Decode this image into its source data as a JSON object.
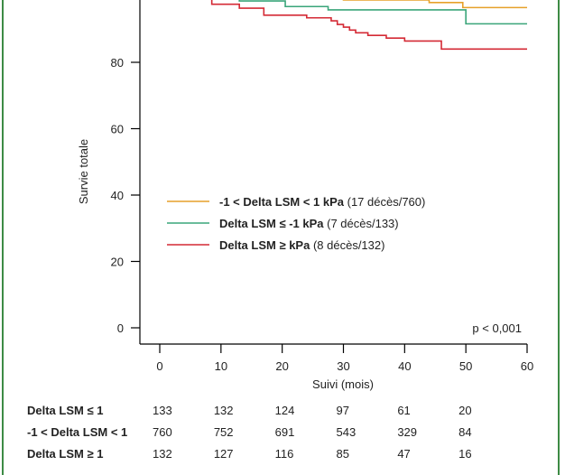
{
  "chart_data": {
    "type": "line",
    "title": "",
    "xlabel": "Suivi (mois)",
    "ylabel": "Survie totale",
    "xlim": [
      0,
      60
    ],
    "ylim": [
      0,
      100
    ],
    "x_ticks": [
      "0",
      "10",
      "20",
      "30",
      "40",
      "50",
      "60"
    ],
    "y_ticks": [
      "0",
      "20",
      "40",
      "60",
      "80"
    ],
    "annotation": "p < 0,001",
    "legend_position": "center",
    "series": [
      {
        "name_bold": "-1 < Delta LSM < 1 kPa",
        "name_rest": " (17 décès/760)",
        "color": "#e6a12a",
        "steps": [
          [
            0,
            100
          ],
          [
            24,
            99.5
          ],
          [
            30,
            98.8
          ],
          [
            44,
            98
          ],
          [
            49.5,
            96.5
          ],
          [
            60,
            96.5
          ]
        ]
      },
      {
        "name_bold": "Delta LSM ≤ -1 kPa",
        "name_rest": " (7 décès/133)",
        "color": "#3aa57a",
        "steps": [
          [
            0,
            100
          ],
          [
            13,
            98.5
          ],
          [
            20.5,
            96.8
          ],
          [
            27.5,
            95.8
          ],
          [
            50,
            91.6
          ],
          [
            60,
            91.6
          ]
        ]
      },
      {
        "name_bold": "Delta LSM ≥ kPa",
        "name_rest": " (8 décès/132)",
        "color": "#d42a35",
        "steps": [
          [
            0,
            100
          ],
          [
            6,
            99.2
          ],
          [
            8.5,
            97.5
          ],
          [
            13,
            96.3
          ],
          [
            17,
            94.2
          ],
          [
            24,
            93.4
          ],
          [
            28,
            92.5
          ],
          [
            29,
            91.4
          ],
          [
            30,
            90.6
          ],
          [
            31,
            89.7
          ],
          [
            32,
            88.9
          ],
          [
            34,
            88.1
          ],
          [
            37,
            87.3
          ],
          [
            40,
            86.4
          ],
          [
            46,
            84
          ],
          [
            60,
            84
          ]
        ]
      }
    ],
    "risk_table": {
      "rows": [
        {
          "label": "Delta LSM ≤ 1",
          "values": [
            "133",
            "132",
            "124",
            "97",
            "61",
            "20"
          ]
        },
        {
          "label": "-1 < Delta LSM < 1",
          "values": [
            "760",
            "752",
            "691",
            "543",
            "329",
            "84"
          ]
        },
        {
          "label": "Delta LSM ≥ 1",
          "values": [
            "132",
            "127",
            "116",
            "85",
            "47",
            "16"
          ]
        }
      ]
    }
  }
}
